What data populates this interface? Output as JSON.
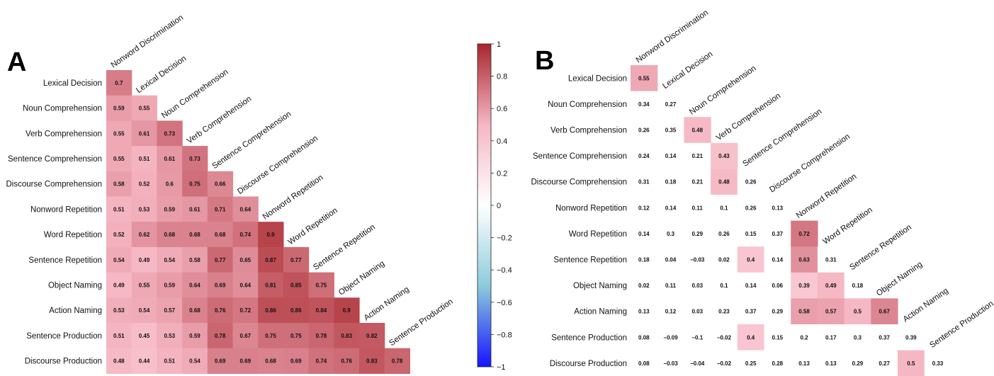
{
  "chart_data": [
    {
      "type": "heatmap",
      "panel_label": "A",
      "variables": [
        "Nonword Discrimination",
        "Lexical Decision",
        "Noun Comprehension",
        "Verb Comprehension",
        "Sentence Comprehension",
        "Discourse Comprehension",
        "Nonword Repetition",
        "Word Repetition",
        "Sentence Repetition",
        "Object Naming",
        "Action Naming",
        "Sentence Production",
        "Discourse Production"
      ],
      "row_labels": [
        "Lexical Decision",
        "Noun Comprehension",
        "Verb Comprehension",
        "Sentence Comprehension",
        "Discourse Comprehension",
        "Nonword Repetition",
        "Word Repetition",
        "Sentence Repetition",
        "Object Naming",
        "Action Naming",
        "Sentence Production",
        "Discourse Production"
      ],
      "col_labels": [
        "Nonword Discrimination",
        "Lexical Decision",
        "Noun Comprehension",
        "Verb Comprehension",
        "Sentence Comprehension",
        "Discourse Comprehension",
        "Nonword Repetition",
        "Word Repetition",
        "Sentence Repetition",
        "Object Naming",
        "Action Naming",
        "Sentence Production"
      ],
      "values": [
        [
          0.7
        ],
        [
          0.59,
          0.55
        ],
        [
          0.55,
          0.61,
          0.73
        ],
        [
          0.55,
          0.51,
          0.61,
          0.73
        ],
        [
          0.58,
          0.52,
          0.6,
          0.75,
          0.66
        ],
        [
          0.51,
          0.53,
          0.59,
          0.61,
          0.71,
          0.64
        ],
        [
          0.52,
          0.62,
          0.68,
          0.68,
          0.68,
          0.74,
          0.9
        ],
        [
          0.54,
          0.49,
          0.54,
          0.58,
          0.77,
          0.65,
          0.87,
          0.77
        ],
        [
          0.49,
          0.55,
          0.59,
          0.64,
          0.69,
          0.64,
          0.81,
          0.85,
          0.75
        ],
        [
          0.53,
          0.54,
          0.57,
          0.68,
          0.76,
          0.72,
          0.86,
          0.86,
          0.84,
          0.9
        ],
        [
          0.51,
          0.45,
          0.53,
          0.59,
          0.78,
          0.67,
          0.75,
          0.75,
          0.78,
          0.83,
          0.82
        ],
        [
          0.48,
          0.44,
          0.51,
          0.54,
          0.69,
          0.69,
          0.68,
          0.69,
          0.74,
          0.76,
          0.83,
          0.78
        ]
      ],
      "shown_labels": [
        [
          "0.7"
        ],
        [
          "0.59",
          "0.55"
        ],
        [
          "0.55",
          "0.61",
          "0.73"
        ],
        [
          "0.55",
          "0.51",
          "0.61",
          "0.73"
        ],
        [
          "0.58",
          "0.52",
          "0.6",
          "0.75",
          "0.66"
        ],
        [
          "0.51",
          "0.53",
          "0.59",
          "0.61",
          "0.71",
          "0.64"
        ],
        [
          "0.52",
          "0.62",
          "0.68",
          "0.68",
          "0.68",
          "0.74",
          "0.9"
        ],
        [
          "0.54",
          "0.49",
          "0.54",
          "0.58",
          "0.77",
          "0.65",
          "0.87",
          "0.77"
        ],
        [
          "0.49",
          "0.55",
          "0.59",
          "0.64",
          "0.69",
          "0.64",
          "0.81",
          "0.85",
          "0.75"
        ],
        [
          "0.53",
          "0.54",
          "0.57",
          "0.68",
          "0.76",
          "0.72",
          "0.86",
          "0.86",
          "0.84",
          "0.9"
        ],
        [
          "0.51",
          "0.45",
          "0.53",
          "0.59",
          "0.78",
          "0.67",
          "0.75",
          "0.75",
          "0.78",
          "0.83",
          "0.82"
        ],
        [
          "0.48",
          "0.44",
          "0.51",
          "0.54",
          "0.69",
          "0.69",
          "0.68",
          "0.69",
          "0.74",
          "0.76",
          "0.83",
          "0.78"
        ]
      ]
    },
    {
      "type": "heatmap",
      "panel_label": "B",
      "variables": [
        "Nonword Discrimination",
        "Lexical Decision",
        "Noun Comprehension",
        "Verb Comprehension",
        "Sentence Comprehension",
        "Discourse Comprehension",
        "Nonword Repetition",
        "Word Repetition",
        "Sentence Repetition",
        "Object Naming",
        "Action Naming",
        "Sentence Production",
        "Discourse Production"
      ],
      "row_labels": [
        "Lexical Decision",
        "Noun Comprehension",
        "Verb Comprehension",
        "Sentence Comprehension",
        "Discourse Comprehension",
        "Nonword Repetition",
        "Word Repetition",
        "Sentence Repetition",
        "Object Naming",
        "Action Naming",
        "Sentence Production",
        "Discourse Production"
      ],
      "col_labels": [
        "Nonword Discrimination",
        "Lexical Decision",
        "Noun Comprehension",
        "Verb Comprehension",
        "Sentence Comprehension",
        "Discourse Comprehension",
        "Nonword Repetition",
        "Word Repetition",
        "Sentence Repetition",
        "Object Naming",
        "Action Naming",
        "Sentence Production"
      ],
      "values": [
        [
          0.55
        ],
        [
          0.34,
          0.27
        ],
        [
          0.26,
          0.35,
          0.48
        ],
        [
          0.24,
          0.14,
          0.21,
          0.43
        ],
        [
          0.31,
          0.18,
          0.21,
          0.48,
          0.26
        ],
        [
          0.12,
          0.14,
          0.11,
          0.1,
          0.26,
          0.13
        ],
        [
          0.14,
          0.3,
          0.29,
          0.26,
          0.15,
          0.37,
          0.72
        ],
        [
          0.18,
          0.04,
          -0.03,
          0.02,
          0.4,
          0.14,
          0.63,
          0.31
        ],
        [
          0.02,
          0.11,
          0.03,
          0.1,
          0.14,
          0.06,
          0.39,
          0.49,
          0.18
        ],
        [
          0.13,
          0.12,
          0.03,
          0.23,
          0.37,
          0.29,
          0.58,
          0.57,
          0.5,
          0.67
        ],
        [
          0.08,
          -0.09,
          -0.1,
          -0.02,
          0.4,
          0.15,
          0.2,
          0.17,
          0.3,
          0.37,
          0.39
        ],
        [
          0.08,
          -0.03,
          -0.04,
          -0.02,
          0.25,
          0.28,
          0.13,
          0.13,
          0.29,
          0.27,
          0.5,
          0.33
        ]
      ],
      "shown_labels": [
        [
          "0.55"
        ],
        [
          "0.34",
          "0.27"
        ],
        [
          "0.26",
          "0.35",
          "0.48"
        ],
        [
          "0.24",
          "0.14",
          "0.21",
          "0.43"
        ],
        [
          "0.31",
          "0.18",
          "0.21",
          "0.48",
          "0.26"
        ],
        [
          "0.12",
          "0.14",
          "0.11",
          "0.1",
          "0.26",
          "0.13"
        ],
        [
          "0.14",
          "0.3",
          "0.29",
          "0.26",
          "0.15",
          "0.37",
          "0.72"
        ],
        [
          "0.18",
          "0.04",
          "−0.03",
          "0.02",
          "0.4",
          "0.14",
          "0.63",
          "0.31"
        ],
        [
          "0.02",
          "0.11",
          "0.03",
          "0.1",
          "0.14",
          "0.06",
          "0.39",
          "0.49",
          "0.18"
        ],
        [
          "0.13",
          "0.12",
          "0.03",
          "0.23",
          "0.37",
          "0.29",
          "0.58",
          "0.57",
          "0.5",
          "0.67"
        ],
        [
          "0.08",
          "−0.09",
          "−0.1",
          "−0.02",
          "0.4",
          "0.15",
          "0.2",
          "0.17",
          "0.3",
          "0.37",
          "0.39"
        ],
        [
          "0.08",
          "−0.03",
          "−0.04",
          "−0.02",
          "0.25",
          "0.28",
          "0.13",
          "0.13",
          "0.29",
          "0.27",
          "0.5",
          "0.33"
        ]
      ],
      "colored_cells": [
        [
          0,
          0
        ],
        [
          2,
          2
        ],
        [
          3,
          3
        ],
        [
          4,
          3
        ],
        [
          6,
          6
        ],
        [
          7,
          4
        ],
        [
          7,
          6
        ],
        [
          8,
          6
        ],
        [
          8,
          7
        ],
        [
          9,
          6
        ],
        [
          9,
          7
        ],
        [
          9,
          8
        ],
        [
          9,
          9
        ],
        [
          10,
          4
        ],
        [
          11,
          10
        ]
      ]
    }
  ],
  "colorbar": {
    "range": [
      -1,
      1
    ],
    "ticks": [
      "1",
      "0.8",
      "0.6",
      "0.4",
      "0.2",
      "0",
      "−0.2",
      "−0.4",
      "−0.6",
      "−0.8",
      "−1"
    ],
    "colors": {
      "negative": "#1414ff",
      "mid_negative": "#8ccbdb",
      "zero": "#ffffff",
      "mid_positive": "#f6b7c4",
      "positive": "#a7262d"
    }
  }
}
